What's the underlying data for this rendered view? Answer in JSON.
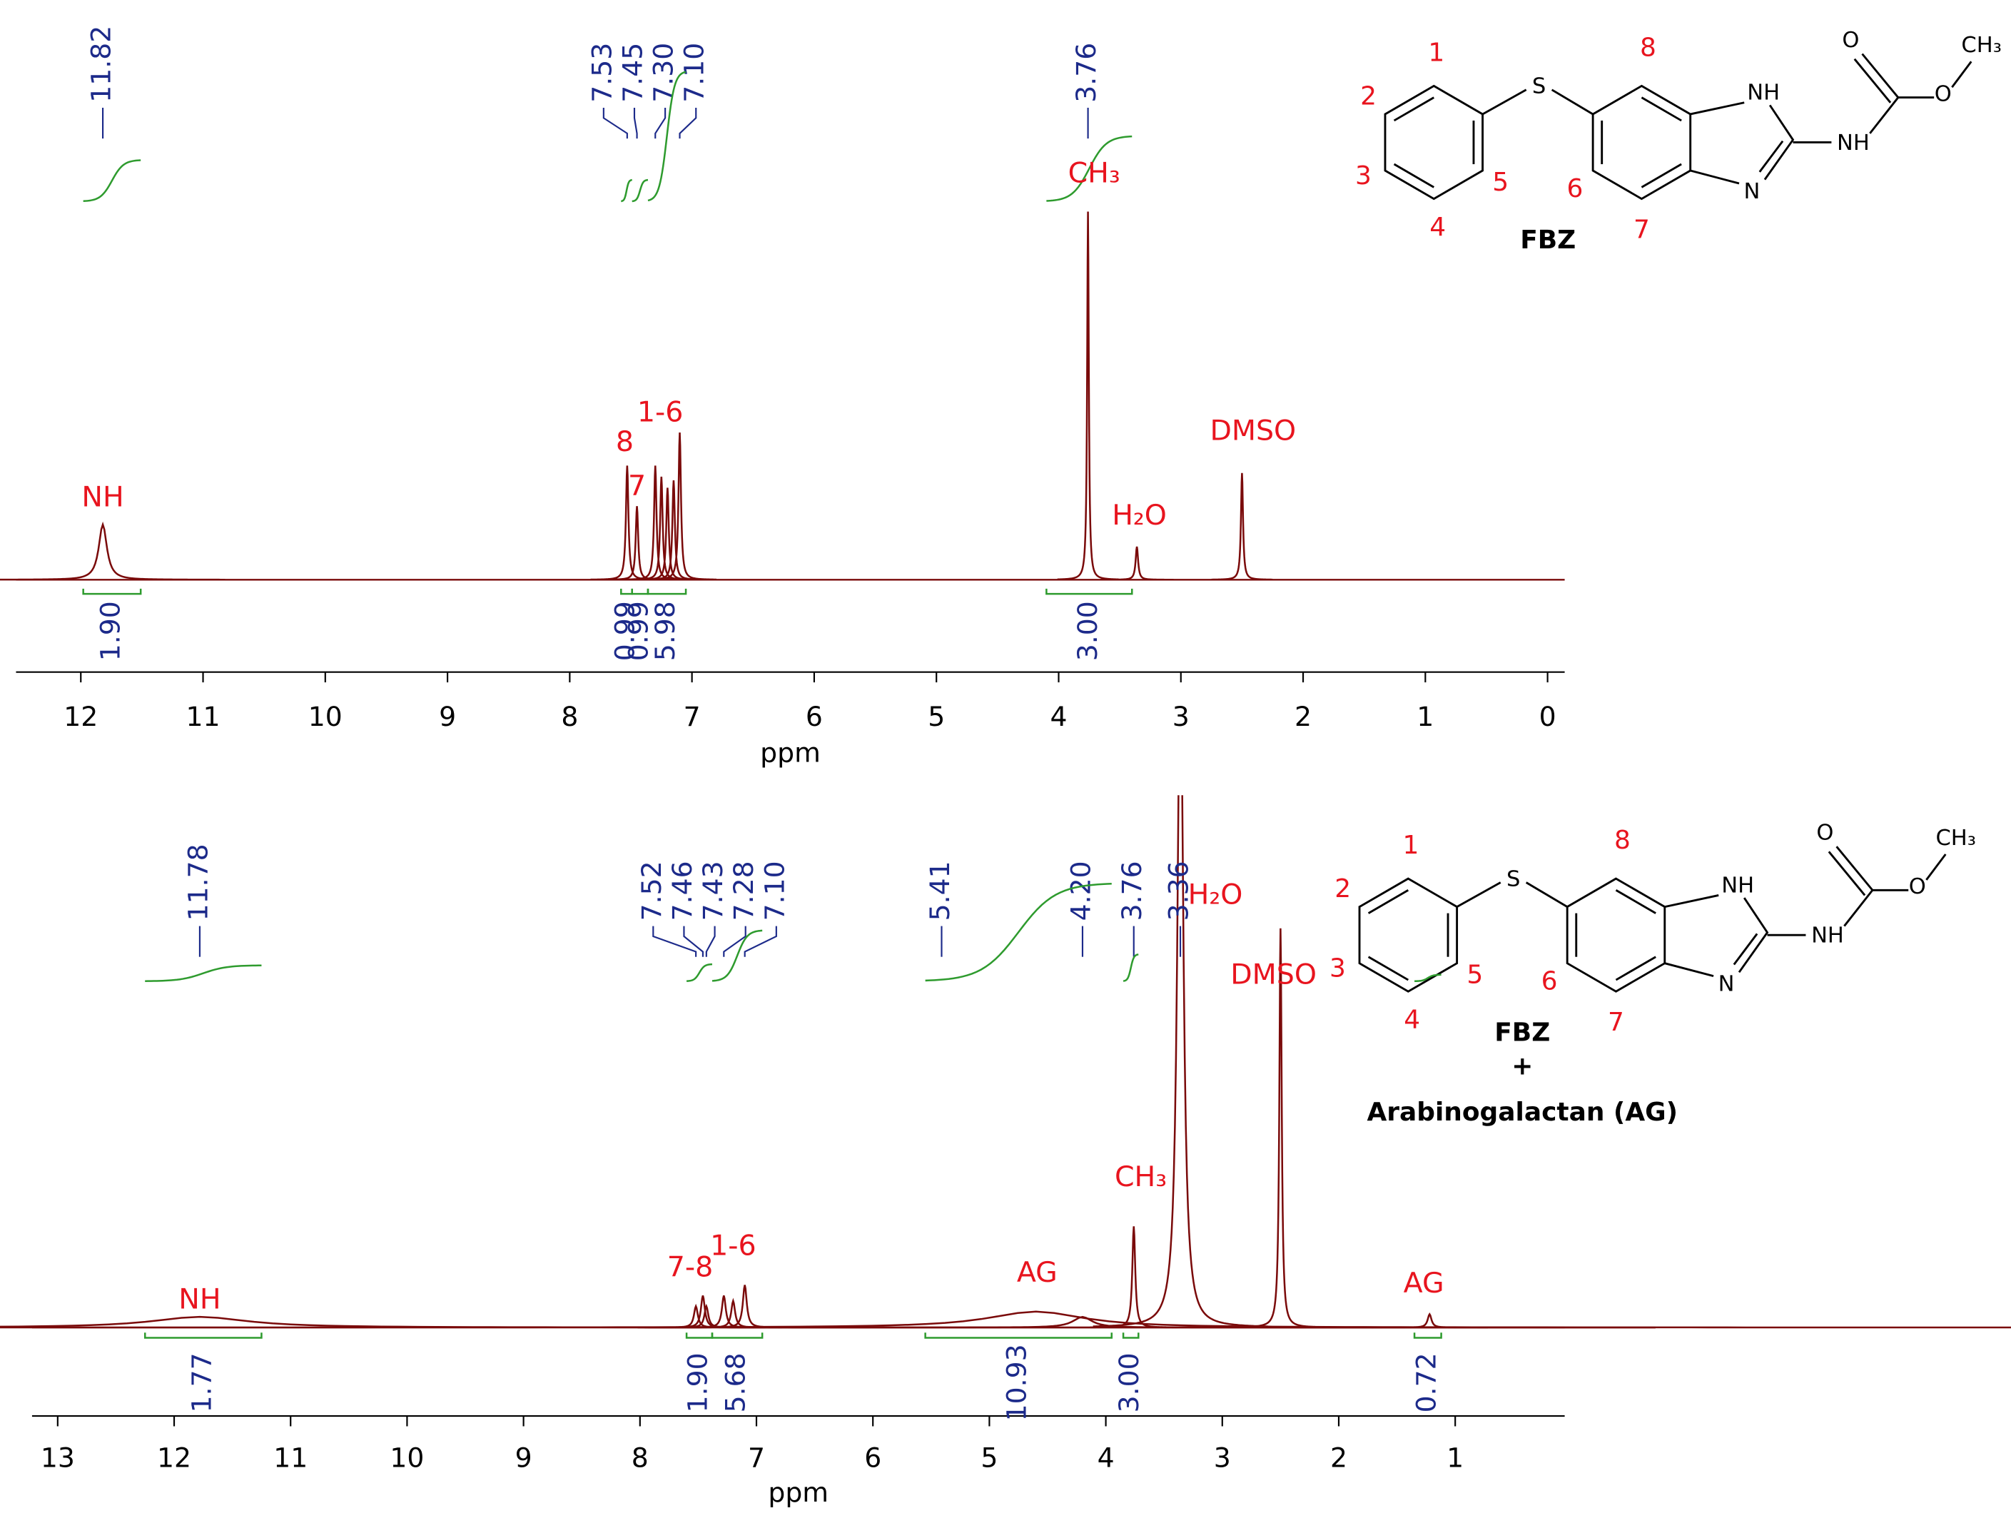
{
  "chart_data": [
    {
      "type": "nmr",
      "x_label": "ppm",
      "xlim": [
        12.53,
        -0.14
      ],
      "xticks": [
        12,
        11,
        10,
        9,
        8,
        7,
        6,
        5,
        4,
        3,
        2,
        1,
        0
      ],
      "color": "#7a0a0a",
      "integral_color": "#2e9b2e",
      "shift_labels": [
        11.82,
        7.53,
        7.45,
        {
          "value": 7.3,
          "label": "7.30"
        },
        {
          "value": 7.1,
          "label": "7.10"
        },
        3.76
      ],
      "peaks": [
        {
          "x": 11.82,
          "y": 15,
          "width": 0.04
        },
        {
          "x": 7.53,
          "y": 31,
          "width": 0.012
        },
        {
          "x": 7.45,
          "y": 20,
          "width": 0.012
        },
        {
          "x": 7.3,
          "y": 31,
          "width": 0.012
        },
        {
          "x": 7.25,
          "y": 28,
          "width": 0.012
        },
        {
          "x": 7.2,
          "y": 25,
          "width": 0.012
        },
        {
          "x": 7.15,
          "y": 27,
          "width": 0.012
        },
        {
          "x": 7.1,
          "y": 40,
          "width": 0.012
        },
        {
          "x": 3.76,
          "y": 100,
          "width": 0.008
        },
        {
          "x": 3.36,
          "y": 9,
          "width": 0.012
        },
        {
          "x": 2.5,
          "y": 29,
          "width": 0.01
        }
      ],
      "integrals": [
        {
          "from": 11.98,
          "to": 11.51,
          "value": 1.9,
          "label": "1.90"
        },
        {
          "from": 7.58,
          "to": 7.49,
          "value": 0.99,
          "label": "0.99"
        },
        {
          "from": 7.49,
          "to": 7.36,
          "value": 0.99,
          "label": "0.99"
        },
        {
          "from": 7.36,
          "to": 7.05,
          "value": 5.98,
          "label": "5.98"
        },
        {
          "from": 4.1,
          "to": 3.4,
          "value": 3,
          "label": "3.00"
        }
      ],
      "annotations": [
        {
          "text": "NH",
          "x": 11.82,
          "y": 22
        },
        {
          "text": "8",
          "x": 7.55,
          "y": 37
        },
        {
          "text": "7",
          "x": 7.45,
          "y": 25
        },
        {
          "text": "1-6",
          "x": 7.26,
          "y": 45
        },
        {
          "text": "CH₃",
          "x": 3.71,
          "y": 110
        },
        {
          "text": "H₂O",
          "x": 3.34,
          "y": 17
        },
        {
          "text": "DMSO",
          "x": 2.41,
          "y": 40
        }
      ]
    },
    {
      "type": "nmr",
      "x_label": "ppm",
      "xlim": [
        13.22,
        0.06
      ],
      "xticks": [
        13,
        12,
        11,
        10,
        9,
        8,
        7,
        6,
        5,
        4,
        3,
        2,
        1
      ],
      "color": "#7a0a0a",
      "integral_color": "#2e9b2e",
      "shift_labels": [
        11.78,
        7.52,
        7.46,
        7.43,
        7.28,
        {
          "value": 7.1,
          "label": "7.10"
        },
        5.41,
        {
          "value": 4.2,
          "label": "4.20"
        },
        3.76,
        3.36
      ],
      "peaks": [
        {
          "x": 11.78,
          "y": 2,
          "width": 0.5
        },
        {
          "x": 7.52,
          "y": 4,
          "width": 0.02
        },
        {
          "x": 7.46,
          "y": 6,
          "width": 0.02
        },
        {
          "x": 7.43,
          "y": 4,
          "width": 0.02
        },
        {
          "x": 7.28,
          "y": 6,
          "width": 0.02
        },
        {
          "x": 7.2,
          "y": 5,
          "width": 0.02
        },
        {
          "x": 7.1,
          "y": 8,
          "width": 0.02
        },
        {
          "x": 4.6,
          "y": 3,
          "width": 0.5
        },
        {
          "x": 4.2,
          "y": 2,
          "width": 0.1
        },
        {
          "x": 3.76,
          "y": 19,
          "width": 0.015
        },
        {
          "x": 3.36,
          "y": 130,
          "width": 0.03
        },
        {
          "x": 2.5,
          "y": 75,
          "width": 0.012
        },
        {
          "x": 1.22,
          "y": 2.5,
          "width": 0.02
        }
      ],
      "integrals": [
        {
          "from": 12.25,
          "to": 11.25,
          "value": 1.77,
          "label": "1.77"
        },
        {
          "from": 7.6,
          "to": 7.38,
          "value": 1.9,
          "label": "1.90"
        },
        {
          "from": 7.38,
          "to": 6.95,
          "value": 5.68,
          "label": "5.68"
        },
        {
          "from": 5.55,
          "to": 3.95,
          "value": 10.93,
          "label": "10.93"
        },
        {
          "from": 3.85,
          "to": 3.72,
          "value": 3,
          "label": "3.00"
        },
        {
          "from": 1.35,
          "to": 1.12,
          "value": 0.72,
          "label": "0.72"
        }
      ],
      "annotations": [
        {
          "text": "NH",
          "x": 11.78,
          "y": 5
        },
        {
          "text": "7-8",
          "x": 7.57,
          "y": 11
        },
        {
          "text": "1-6",
          "x": 7.2,
          "y": 15
        },
        {
          "text": "AG",
          "x": 4.59,
          "y": 10
        },
        {
          "text": "CH₃",
          "x": 3.7,
          "y": 28
        },
        {
          "text": "H₂O",
          "x": 3.06,
          "y": 81
        },
        {
          "text": "DMSO",
          "x": 2.56,
          "y": 66
        },
        {
          "text": "AG",
          "x": 1.27,
          "y": 8
        }
      ],
      "caption": [
        "+",
        "Arabinogalactan (AG)"
      ]
    }
  ],
  "structure": {
    "numbers": [
      "1",
      "2",
      "3",
      "4",
      "5",
      "6",
      "7",
      "8"
    ],
    "atoms": [
      "S",
      "NH",
      "N",
      "NH",
      "O",
      "O",
      "CH₃"
    ],
    "name": "FBZ"
  }
}
